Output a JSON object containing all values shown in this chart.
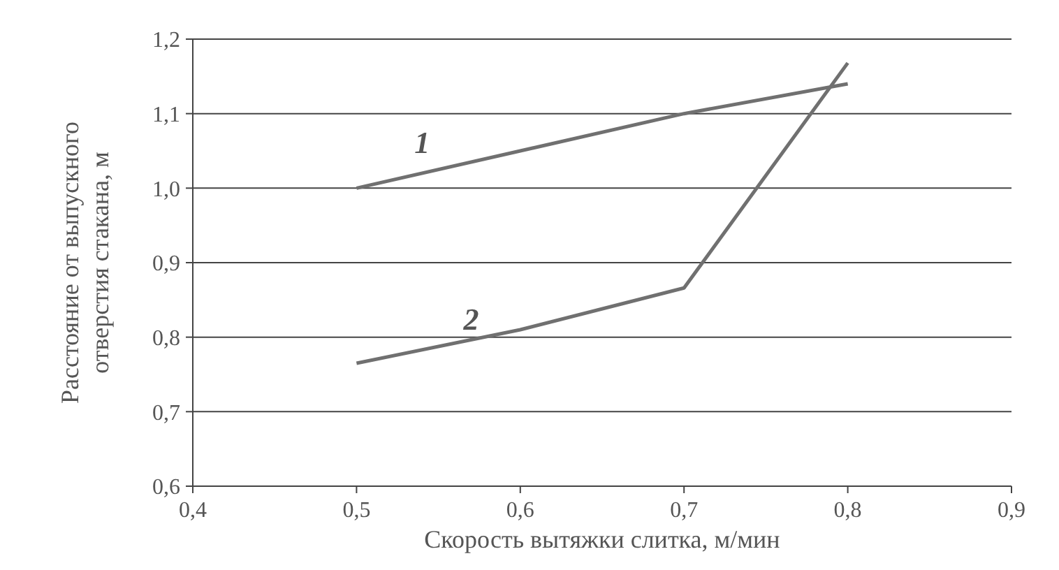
{
  "chart_data": {
    "type": "line",
    "xlabel": "Скорость вытяжки слитка, м/мин",
    "ylabel": "Расстояние от выпускного отверстия стакана, м",
    "x": [
      0.5,
      0.6,
      0.7,
      0.8
    ],
    "series": [
      {
        "name": "1",
        "color": "#707070",
        "values": [
          1.0,
          1.05,
          1.1,
          1.14
        ]
      },
      {
        "name": "2",
        "color": "#707070",
        "values": [
          0.765,
          0.81,
          0.866,
          1.168
        ]
      }
    ],
    "xlim": [
      0.4,
      0.9
    ],
    "xticks": [
      {
        "value": 0.4,
        "label": "0,4"
      },
      {
        "value": 0.5,
        "label": "0,5"
      },
      {
        "value": 0.6,
        "label": "0,6"
      },
      {
        "value": 0.7,
        "label": "0,7"
      },
      {
        "value": 0.8,
        "label": "0,8"
      },
      {
        "value": 0.9,
        "label": "0,9"
      }
    ],
    "ylim": [
      0.6,
      1.2
    ],
    "yticks": [
      {
        "value": 0.6,
        "label": "0,6"
      },
      {
        "value": 0.7,
        "label": "0,7"
      },
      {
        "value": 0.8,
        "label": "0,8"
      },
      {
        "value": 0.9,
        "label": "0,9"
      },
      {
        "value": 1.0,
        "label": "1,0"
      },
      {
        "value": 1.1,
        "label": "1,1"
      },
      {
        "value": 1.2,
        "label": "1,2"
      }
    ],
    "grid": "y",
    "marker": "none",
    "line_style": "solid"
  }
}
